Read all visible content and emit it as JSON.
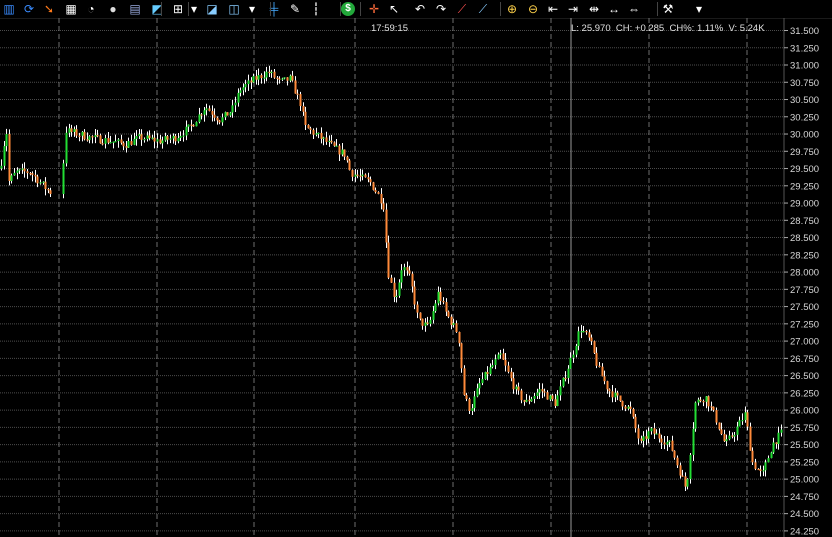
{
  "toolbar": {
    "buttons": [
      {
        "name": "bar-chart-icon",
        "glyph": "▥",
        "color": "#3a8cff"
      },
      {
        "name": "refresh-icon",
        "glyph": "⟳",
        "color": "#3a8cff"
      },
      {
        "name": "arrow-icon",
        "glyph": "➘",
        "color": "#ff7a1a"
      },
      {
        "name": "grid-icon",
        "glyph": "▦",
        "color": "#ffffff"
      },
      {
        "name": "gauge-icon",
        "glyph": "◔",
        "color": "#ffffff"
      },
      {
        "name": "circle-icon",
        "glyph": "●",
        "color": "#dddddd"
      },
      {
        "name": "calculator-icon",
        "glyph": "▤",
        "color": "#9ad"
      },
      {
        "name": "palette-icon",
        "glyph": "◩",
        "color": "#6cf"
      },
      {
        "name": "layout-icon",
        "glyph": "⊞",
        "color": "#ffffff"
      },
      {
        "name": "dropdown-icon",
        "glyph": "▾",
        "color": "#ffffff"
      },
      {
        "name": "line-chart-icon",
        "glyph": "◪",
        "color": "#8cf"
      },
      {
        "name": "drawing-chart-icon",
        "glyph": "◫",
        "color": "#8cf"
      },
      {
        "name": "dropdown-icon",
        "glyph": "▾",
        "color": "#ffffff"
      },
      {
        "name": "indicator-icon",
        "glyph": "╪",
        "color": "#4af"
      },
      {
        "name": "pen-icon",
        "glyph": "✎",
        "color": "#ffffff"
      },
      {
        "name": "candle-icon",
        "glyph": "┇",
        "color": "#aaaaaa"
      },
      {
        "name": "dollar-icon",
        "glyph": "$",
        "color": "#ffffff",
        "bg": "#22a83a"
      },
      {
        "name": "crosshair-icon",
        "glyph": "✛",
        "color": "#ff6b3a"
      },
      {
        "name": "cursor-icon",
        "glyph": "↖",
        "color": "#ffffff"
      },
      {
        "name": "undo-icon",
        "glyph": "↶",
        "color": "#ffffff"
      },
      {
        "name": "redo-icon",
        "glyph": "↷",
        "color": "#ffffff"
      },
      {
        "name": "trendline-icon",
        "glyph": "⟋",
        "color": "#ff5050"
      },
      {
        "name": "draw-icon",
        "glyph": "⟋",
        "color": "#8cf"
      },
      {
        "name": "zoom-in-icon",
        "glyph": "⊕",
        "color": "#ffd24a"
      },
      {
        "name": "zoom-out-icon",
        "glyph": "⊖",
        "color": "#ffd24a"
      },
      {
        "name": "scroll-left-icon",
        "glyph": "⇤",
        "color": "#ffffff"
      },
      {
        "name": "scroll-right-icon",
        "glyph": "⇥",
        "color": "#ffffff"
      },
      {
        "name": "shrink-icon",
        "glyph": "⇹",
        "color": "#ffffff"
      },
      {
        "name": "expand-icon",
        "glyph": "↔",
        "color": "#ffffff"
      },
      {
        "name": "fit-icon",
        "glyph": "⇔",
        "color": "#ffffff"
      },
      {
        "name": "wrench-icon",
        "glyph": "⚒",
        "color": "#ffffff"
      },
      {
        "name": "dropdown-icon",
        "glyph": "▾",
        "color": "#ffffff"
      }
    ]
  },
  "status": {
    "time": "17:59:15",
    "last_quote": "L: 25.970  CH: +0.285  CH%: 1.11%  V: 5.24K"
  },
  "colors": {
    "up": "#22dd33",
    "down": "#ff8a3a",
    "wick": "#ffffff",
    "grid": "#8a8a8a",
    "background": "#000000"
  },
  "chart_data": {
    "type": "candlestick",
    "y_axis_ticks": [
      "31.500",
      "31.250",
      "31.000",
      "30.750",
      "30.500",
      "30.250",
      "30.000",
      "29.750",
      "29.500",
      "29.250",
      "29.000",
      "28.750",
      "28.500",
      "28.250",
      "28.000",
      "27.750",
      "27.500",
      "27.250",
      "27.000",
      "26.750",
      "26.500",
      "26.250",
      "26.000",
      "25.750",
      "25.500",
      "25.250",
      "25.000",
      "24.750",
      "24.500",
      "24.250"
    ],
    "ylim": [
      24.25,
      31.5
    ],
    "grid": true,
    "price_path": [
      [
        0,
        29.5
      ],
      [
        6,
        30.1
      ],
      [
        8,
        29.3
      ],
      [
        16,
        29.45
      ],
      [
        30,
        29.45
      ],
      [
        50,
        29.15
      ],
      [
        62,
        29.35
      ],
      [
        66,
        30.05
      ],
      [
        90,
        29.95
      ],
      [
        110,
        29.9
      ],
      [
        125,
        29.85
      ],
      [
        140,
        29.95
      ],
      [
        160,
        29.9
      ],
      [
        175,
        29.95
      ],
      [
        190,
        30.1
      ],
      [
        205,
        30.4
      ],
      [
        220,
        30.2
      ],
      [
        232,
        30.35
      ],
      [
        240,
        30.65
      ],
      [
        255,
        30.8
      ],
      [
        268,
        30.9
      ],
      [
        280,
        30.75
      ],
      [
        290,
        30.8
      ],
      [
        300,
        30.45
      ],
      [
        305,
        30.1
      ],
      [
        320,
        29.95
      ],
      [
        334,
        29.8
      ],
      [
        345,
        29.7
      ],
      [
        350,
        29.45
      ],
      [
        370,
        29.3
      ],
      [
        383,
        29.0
      ],
      [
        388,
        28.0
      ],
      [
        395,
        27.6
      ],
      [
        402,
        28.1
      ],
      [
        410,
        27.9
      ],
      [
        418,
        27.3
      ],
      [
        428,
        27.2
      ],
      [
        438,
        27.7
      ],
      [
        446,
        27.4
      ],
      [
        458,
        27.1
      ],
      [
        464,
        26.2
      ],
      [
        470,
        26.0
      ],
      [
        480,
        26.4
      ],
      [
        490,
        26.6
      ],
      [
        500,
        26.8
      ],
      [
        515,
        26.3
      ],
      [
        525,
        26.1
      ],
      [
        540,
        26.3
      ],
      [
        555,
        26.1
      ],
      [
        572,
        26.8
      ],
      [
        580,
        27.2
      ],
      [
        590,
        27.0
      ],
      [
        598,
        26.6
      ],
      [
        608,
        26.3
      ],
      [
        615,
        26.2
      ],
      [
        630,
        26.0
      ],
      [
        640,
        25.5
      ],
      [
        650,
        25.7
      ],
      [
        660,
        25.6
      ],
      [
        670,
        25.5
      ],
      [
        686,
        24.85
      ],
      [
        695,
        26.1
      ],
      [
        705,
        26.2
      ],
      [
        715,
        25.9
      ],
      [
        725,
        25.5
      ],
      [
        735,
        25.7
      ],
      [
        745,
        25.95
      ],
      [
        752,
        25.25
      ],
      [
        762,
        25.05
      ],
      [
        772,
        25.5
      ],
      [
        783,
        25.7
      ]
    ]
  }
}
